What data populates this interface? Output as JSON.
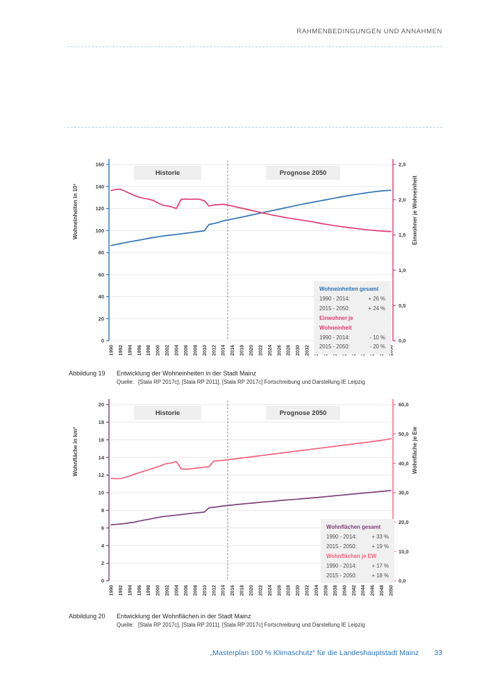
{
  "header": {
    "title": "RAHMENBEDINGUNGEN UND ANNAHMEN"
  },
  "footer": {
    "title": "„Masterplan 100 % Klimaschutz“ für die Landeshauptstadt Mainz",
    "page_number": "33"
  },
  "chart_data": [
    {
      "type": "line",
      "zones": [
        "Historie",
        "Prognose 2050"
      ],
      "divider_year": 2015,
      "x_start": 1990,
      "x_end": 2050,
      "x_tick_labels": [
        "1990",
        "1992",
        "1994",
        "1996",
        "1998",
        "2000",
        "2002",
        "2004",
        "2006",
        "2008",
        "2010",
        "2012",
        "2014",
        "2016",
        "2018",
        "2020",
        "2022",
        "2024",
        "2026",
        "2028",
        "2030",
        "2032",
        "2034",
        "2036",
        "2038",
        "2040",
        "2042",
        "2044",
        "2046",
        "2048",
        "2050"
      ],
      "left_axis": {
        "label": "Wohneinheiten in 10³",
        "min": 0,
        "max": 160,
        "step": 20,
        "color": "#2e74b5",
        "ticks": [
          "0",
          "20",
          "40",
          "60",
          "80",
          "100",
          "120",
          "140",
          "160"
        ]
      },
      "right_axis": {
        "label": "Einwohner je Wohneinheit",
        "min": 0,
        "max": 2.5,
        "step": 0.5,
        "color": "#e23a70",
        "ticks": [
          "0,0",
          "0,5",
          "1,0",
          "1,5",
          "2,0",
          "2,5"
        ]
      },
      "series": [
        {
          "name": "Wohneinheiten gesamt",
          "axis": "left",
          "color": "#2e74b5",
          "values": [
            86.5,
            87.3,
            88.2,
            89.0,
            89.8,
            90.6,
            91.3,
            92.1,
            92.9,
            93.6,
            94.3,
            95.0,
            95.5,
            96.0,
            96.5,
            97.0,
            97.6,
            98.1,
            98.7,
            99.2,
            99.8,
            105.5,
            106.3,
            107.4,
            108.8,
            109.6,
            110.4,
            111.3,
            112.2,
            113.1,
            114.0,
            114.9,
            115.8,
            116.7,
            117.6,
            118.5,
            119.4,
            120.3,
            121.2,
            122.1,
            123.0,
            123.9,
            124.7,
            125.5,
            126.3,
            127.1,
            127.9,
            128.7,
            129.5,
            130.3,
            131.0,
            131.7,
            132.4,
            133.1,
            133.8,
            134.4,
            135.0,
            135.5,
            136.0,
            136.3,
            136.5
          ]
        },
        {
          "name": "Einwohner je Wohneinheit",
          "axis": "right",
          "color": "#e23a70",
          "values": [
            2.13,
            2.145,
            2.15,
            2.12,
            2.09,
            2.06,
            2.035,
            2.02,
            2.01,
            1.99,
            1.955,
            1.925,
            1.91,
            1.9,
            1.875,
            2.005,
            2.01,
            2.005,
            2.01,
            2.005,
            1.985,
            1.91,
            1.925,
            1.93,
            1.935,
            1.925,
            1.91,
            1.895,
            1.88,
            1.865,
            1.85,
            1.835,
            1.82,
            1.805,
            1.79,
            1.778,
            1.765,
            1.752,
            1.74,
            1.73,
            1.72,
            1.71,
            1.7,
            1.69,
            1.675,
            1.663,
            1.652,
            1.642,
            1.632,
            1.622,
            1.613,
            1.604,
            1.596,
            1.588,
            1.58,
            1.573,
            1.567,
            1.561,
            1.556,
            1.551,
            1.547
          ]
        }
      ],
      "legend": {
        "groups": [
          {
            "title": "Wohneinheiten gesamt",
            "color": "#2e74b5",
            "items": [
              {
                "label": "1990 - 2014:",
                "value": "+ 26 %"
              },
              {
                "label": "2015 - 2050:",
                "value": "+ 24 %"
              }
            ]
          },
          {
            "title": "Einwohner je Wohneinheit",
            "color": "#e23a70",
            "items": [
              {
                "label": "1990 - 2014:",
                "value": "- 10 %"
              },
              {
                "label": "2015 - 2050:",
                "value": "- 20 %"
              }
            ]
          }
        ]
      },
      "caption": {
        "label": "Abbildung 19",
        "text": "Entwicklung der Wohneinheiten in der Stadt Mainz",
        "source_label": "Quelle:",
        "source": "[Stala RP 2017c], [Stala RP 2011], [Stala RP 2017c] Fortschreibung und Darstellung IE Leipzig"
      }
    },
    {
      "type": "line",
      "zones": [
        "Historie",
        "Prognose 2050"
      ],
      "divider_year": 2015,
      "x_start": 1990,
      "x_end": 2050,
      "x_tick_labels": [
        "1990",
        "1992",
        "1994",
        "1996",
        "1998",
        "2000",
        "2002",
        "2004",
        "2006",
        "2008",
        "2010",
        "2012",
        "2014",
        "2016",
        "2018",
        "2020",
        "2022",
        "2024",
        "2026",
        "2028",
        "2030",
        "2032",
        "2034",
        "2036",
        "2038",
        "2040",
        "2042",
        "2044",
        "2046",
        "2048",
        "2050"
      ],
      "left_axis": {
        "label": "Wohnfläche in km²",
        "min": 0,
        "max": 20,
        "step": 2,
        "color": "#7b4078",
        "ticks": [
          "0",
          "2",
          "4",
          "6",
          "8",
          "10",
          "12",
          "14",
          "16",
          "18",
          "20"
        ]
      },
      "right_axis": {
        "label": "Wohnfläche je Ew",
        "min": 0,
        "max": 60,
        "step": 10,
        "color": "#f4607a",
        "ticks": [
          "0,0",
          "10,0",
          "20,0",
          "30,0",
          "40,0",
          "50,0",
          "60,0"
        ]
      },
      "series": [
        {
          "name": "Wohnflächen gesamt",
          "axis": "left",
          "color": "#7b4078",
          "values": [
            6.35,
            6.4,
            6.45,
            6.5,
            6.58,
            6.65,
            6.78,
            6.88,
            6.98,
            7.08,
            7.18,
            7.28,
            7.34,
            7.4,
            7.46,
            7.52,
            7.58,
            7.64,
            7.7,
            7.75,
            7.8,
            8.28,
            8.35,
            8.42,
            8.5,
            8.55,
            8.6,
            8.66,
            8.71,
            8.76,
            8.81,
            8.86,
            8.91,
            8.96,
            9.0,
            9.05,
            9.1,
            9.14,
            9.19,
            9.23,
            9.27,
            9.32,
            9.36,
            9.41,
            9.45,
            9.5,
            9.55,
            9.6,
            9.65,
            9.7,
            9.75,
            9.8,
            9.85,
            9.9,
            9.95,
            10.0,
            10.05,
            10.1,
            10.15,
            10.2,
            10.25
          ]
        },
        {
          "name": "Wohnflächen je EW",
          "axis": "right",
          "color": "#f4607a",
          "values": [
            34.9,
            34.8,
            34.8,
            35.2,
            35.7,
            36.3,
            36.8,
            37.3,
            37.8,
            38.3,
            38.8,
            39.4,
            40.0,
            40.1,
            40.6,
            38.1,
            38.0,
            38.1,
            38.3,
            38.5,
            38.7,
            38.8,
            40.8,
            40.9,
            41.0,
            41.2,
            41.4,
            41.6,
            41.8,
            42.0,
            42.2,
            42.4,
            42.6,
            42.8,
            43.0,
            43.2,
            43.4,
            43.6,
            43.8,
            44.0,
            44.2,
            44.4,
            44.6,
            44.8,
            45.0,
            45.2,
            45.4,
            45.6,
            45.8,
            46.0,
            46.2,
            46.4,
            46.6,
            46.8,
            47.0,
            47.2,
            47.4,
            47.6,
            47.8,
            48.1,
            48.4
          ]
        }
      ],
      "legend": {
        "groups": [
          {
            "title": "Wohnflächen gesamt",
            "color": "#7b4078",
            "items": [
              {
                "label": "1990 - 2014:",
                "value": "+ 33 %"
              },
              {
                "label": "2015 - 2050:",
                "value": "+ 19 %"
              }
            ]
          },
          {
            "title": "Wohnflächen je EW",
            "color": "#f4607a",
            "items": [
              {
                "label": "1990 - 2014:",
                "value": "+ 17 %"
              },
              {
                "label": "2015 - 2050:",
                "value": "+ 18 %"
              }
            ]
          }
        ]
      },
      "caption": {
        "label": "Abbildung 20",
        "text": "Entwicklung der Wohnflächen in der Stadt Mainz",
        "source_label": "Quelle:",
        "source": "[Stala RP 2017c], [Stala RP 2011], [Stala RP 2017c] Fortschreibung und Darstellung IE Leipzig"
      }
    }
  ]
}
